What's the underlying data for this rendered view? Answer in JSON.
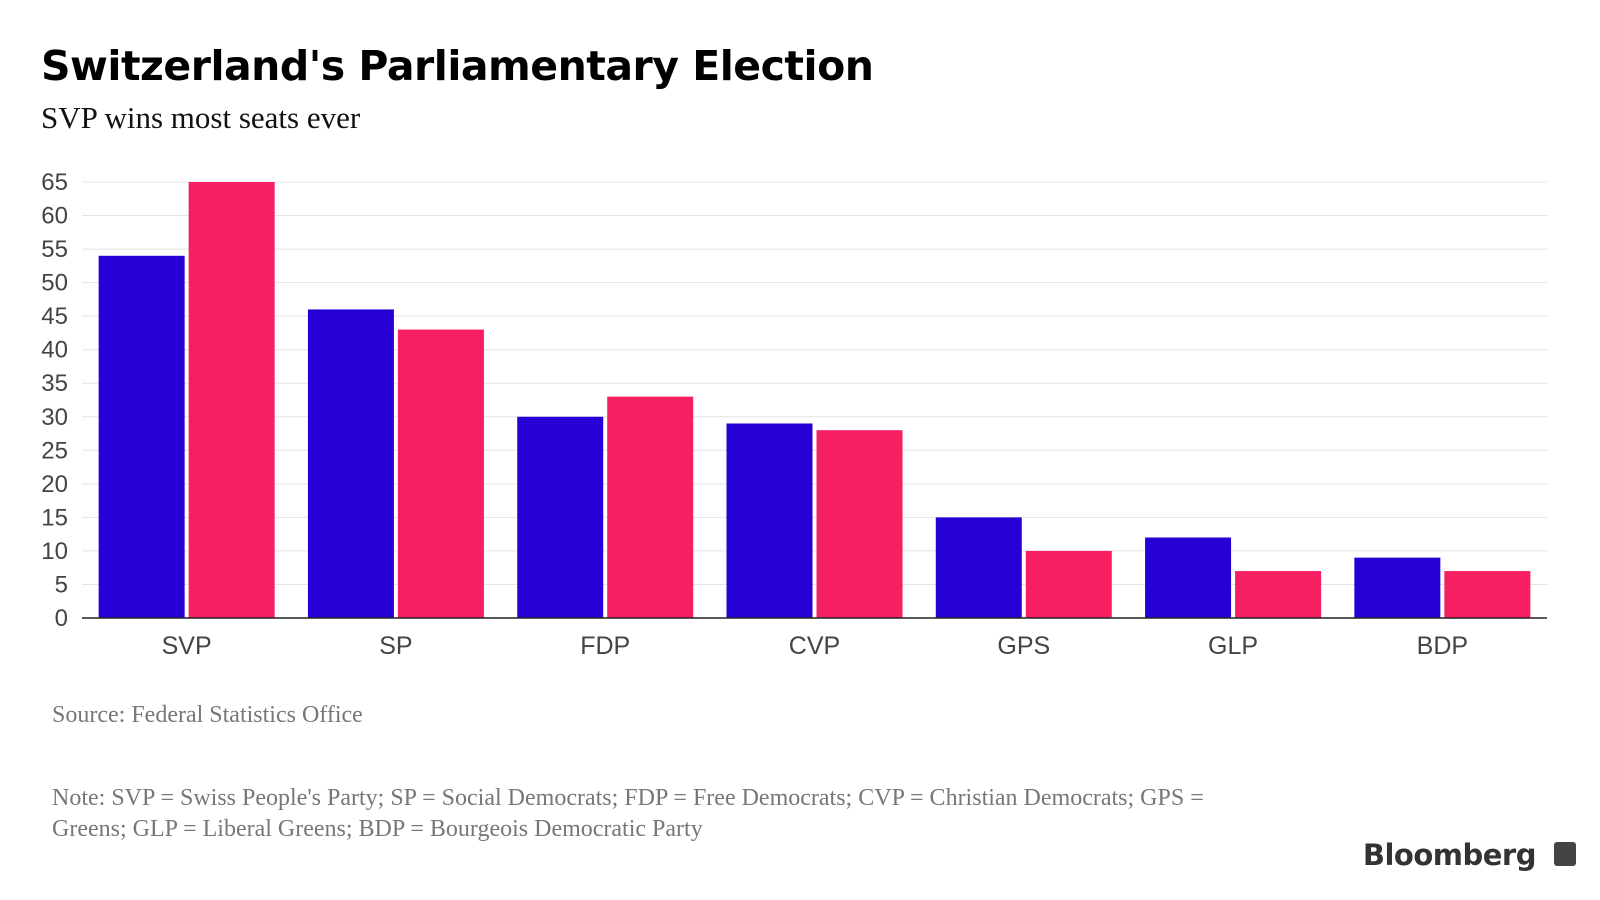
{
  "title": "Switzerland's Parliamentary Election",
  "subtitle": "SVP wins most seats ever",
  "source": "Source: Federal Statistics Office",
  "note": "Note: SVP = Swiss People's Party; SP = Social Democrats; FDP = Free Democrats; CVP = Christian Democrats; GPS = Greens; GLP = Liberal Greens; BDP = Bourgeois Democratic Party",
  "logo": "Bloomberg",
  "chart_data": {
    "type": "bar",
    "categories": [
      "SVP",
      "SP",
      "FDP",
      "CVP",
      "GPS",
      "GLP",
      "BDP"
    ],
    "series": [
      {
        "values": [
          54,
          46,
          30,
          29,
          15,
          12,
          9
        ],
        "color": "#2600d4"
      },
      {
        "values": [
          65,
          43,
          33,
          28,
          10,
          7,
          7
        ],
        "color": "#f61f61"
      }
    ],
    "yticks": [
      0,
      5,
      10,
      15,
      20,
      25,
      30,
      35,
      40,
      45,
      50,
      55,
      60,
      65
    ],
    "ylim": [
      0,
      65
    ],
    "grid": true,
    "legend": "none"
  }
}
